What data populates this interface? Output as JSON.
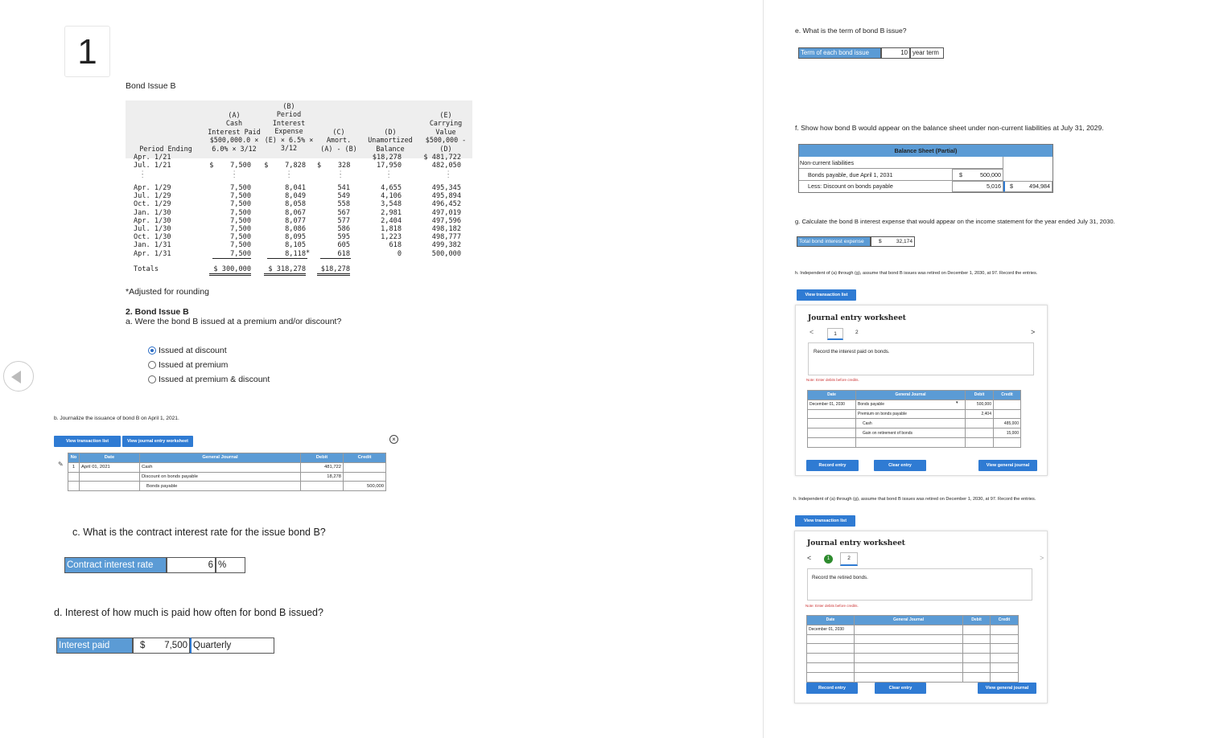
{
  "question_number": "1",
  "bond_title": "Bond Issue B",
  "amort": {
    "h_period": "Period Ending",
    "h_a": "(A)\nCash\nInterest Paid\n$500,000.0 ×\n6.0% × 3/12",
    "h_b": "(B)\nPeriod\nInterest\nExpense\n(E) × 6.5% ×\n3/12",
    "h_c": "(C)\nAmort.\n(A) - (B)",
    "h_d": "(D)\nUnamortized\nBalance",
    "h_e": "(E)\nCarrying\nValue\n$500,000 -\n(D)",
    "periods_top": "Apr. 1/21\nJul. 1/21",
    "a_top": "$    7,500",
    "b_top": "$    7,828",
    "c_top": "$    328",
    "d_top": "$18,278\n17,950",
    "e_top": "$ 481,722\n482,050",
    "periods": "Apr. 1/29\nJul. 1/29\nOct. 1/29\nJan. 1/30\nApr. 1/30\nJul. 1/30\nOct. 1/30\nJan. 1/31\nApr. 1/31",
    "a_vals": "7,500\n7,500\n7,500\n7,500\n7,500\n7,500\n7,500\n7,500\n7,500",
    "b_vals": "8,041\n8,049\n8,058\n8,067\n8,077\n8,086\n8,095\n8,105\n8,118",
    "b_star": "*",
    "c_vals": "541\n549\n558\n567\n577\n586\n595\n605\n618",
    "d_vals": "4,655\n4,106\n3,548\n2,981\n2,404\n1,818\n1,223\n618\n0",
    "e_vals": "495,345\n495,894\n496,452\n497,019\n497,596\n498,182\n498,777\n499,382\n500,000",
    "totals_label": "Totals",
    "a_total": "$ 300,000",
    "b_total": "$ 318,278",
    "c_total": "$18,278",
    "vdots": ":"
  },
  "adjusted_note": "*Adjusted for rounding",
  "part2_title": "2. Bond Issue B",
  "qa": "a. Were the bond B issued at a premium and/or discount?",
  "qa_options": [
    "Issued at discount",
    "Issued at premium",
    "Issued at premium & discount"
  ],
  "qb": "b. Journalize the issuance of bond B on April 1, 2021.",
  "qb_btn1": "View transaction list",
  "qb_btn2": "View journal entry worksheet",
  "qb_table": {
    "h_no": "No",
    "h_date": "Date",
    "h_gj": "General Journal",
    "h_debit": "Debit",
    "h_credit": "Credit",
    "no": "1",
    "date": "April 01, 2021",
    "acct1": "Cash",
    "acct2": "Discount on bonds payable",
    "acct3": "Bonds payable",
    "debit1": "481,722",
    "debit2": "18,278",
    "credit3": "500,000"
  },
  "qc": "c. What is the contract interest rate for the issue bond B?",
  "qc_label": "Contract interest rate",
  "qc_value": "6",
  "qc_unit": "%",
  "qd": "d. Interest of how much is paid how often for bond B issued?",
  "qd_label": "Interest paid",
  "qd_dollar": "$",
  "qd_value": "7,500",
  "qd_freq": "Quarterly",
  "qe": "e. What is the term of bond B issue?",
  "qe_label": "Term of each bond issue",
  "qe_value": "10",
  "qe_unit": "year term",
  "qf": "f. Show how bond B would appear on the balance sheet under non-current liabilities at July 31, 2029.",
  "qf_table": {
    "title": "Balance Sheet (Partial)",
    "r1": "Non-current liabilities",
    "r2": "Bonds payable, due April 1, 2031",
    "r3": "Less: Discount on bonds payable",
    "d1": "$",
    "v1": "500,000",
    "v2": "5,016",
    "d2": "$",
    "v3": "494,984"
  },
  "qg": "g. Calculate the bond B interest expense that would appear on the income statement for the year ended July 31, 2030.",
  "qg_label": "Total bond interest expense",
  "qg_dollar": "$",
  "qg_value": "32,174",
  "qh": "h. Independent of (a) through (g), assume that bond B issues was retired on December 1, 2030, at 97. Record the entries.",
  "ws_btn": "View transaction list",
  "ws_title": "Journal entry worksheet",
  "ws1": {
    "tab1": "1",
    "tab2": "2",
    "instruction": "Record the interest paid on bonds.",
    "note": "Note: Enter debits before credits.",
    "h_date": "Date",
    "h_gj": "General Journal",
    "h_debit": "Debit",
    "h_credit": "Credit",
    "date": "December 01, 2030",
    "acct1": "Bonds payable",
    "acct2": "Premium on bonds payable",
    "acct3": "Cash",
    "acct4": "Gain on retirement of bonds",
    "debit1": "500,000",
    "debit2": "2,404",
    "credit3": "485,000",
    "credit4": "15,000",
    "btn_record": "Record entry",
    "btn_clear": "Clear entry",
    "btn_view": "View general journal"
  },
  "ws2": {
    "tab1": "1",
    "tab2": "2",
    "instruction": "Record the retired bonds.",
    "note": "Note: Enter debits before credits.",
    "h_date": "Date",
    "h_gj": "General Journal",
    "h_debit": "Debit",
    "h_credit": "Credit",
    "date": "December 01, 2030",
    "btn_record": "Record entry",
    "btn_clear": "Clear entry",
    "btn_view": "View general journal"
  }
}
